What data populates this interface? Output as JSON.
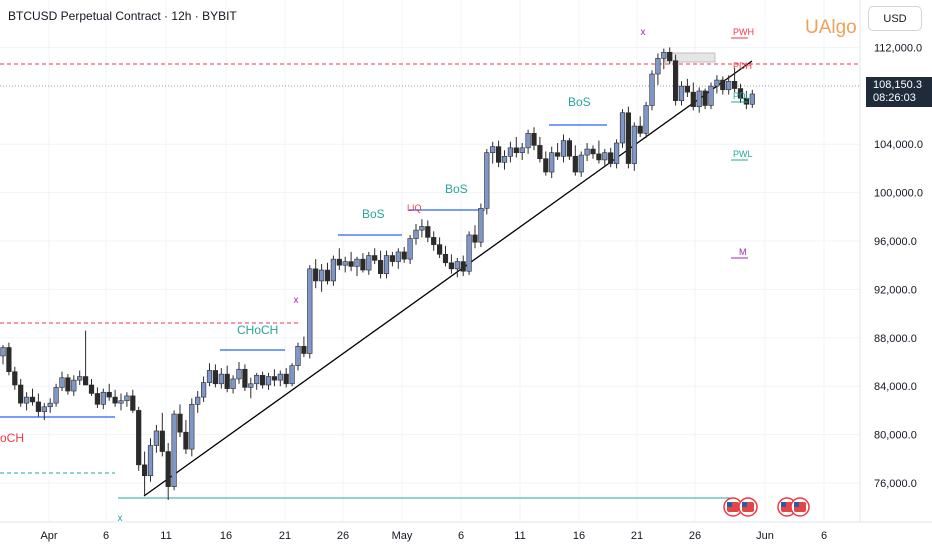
{
  "header": {
    "title": "BTCUSD Perpetual Contract · 12h · BYBIT",
    "brand": "UAlgo",
    "currency": "USD"
  },
  "price_label": {
    "price": "108,150.3",
    "countdown": "08:26:03"
  },
  "colors": {
    "bull_body": "#7f96c8",
    "bear_body": "#2b2b2b",
    "wick": "#2b2b2b",
    "bos": "#26a69a",
    "structure_line": "#2962ff",
    "red_dash": "#f23645",
    "green_dash": "#26a69a",
    "purple": "#9c27b0",
    "brand": "#f0a05a"
  },
  "chart_data": {
    "type": "candlestick",
    "title": "BTCUSD Perpetual Contract · 12h · BYBIT",
    "ylim": [
      72000,
      114000
    ],
    "y_ticks": [
      "112,000.0",
      "104,000.0",
      "100,000.0",
      "96,000.0",
      "92,000.0",
      "88,000.0",
      "84,000.0",
      "80,000.0",
      "76,000.0"
    ],
    "x_ticks": [
      "Apr",
      "6",
      "11",
      "16",
      "21",
      "26",
      "May",
      "6",
      "11",
      "16",
      "21",
      "26",
      "Jun",
      "6"
    ],
    "candles": [
      [
        86500,
        87400,
        85800,
        87200
      ],
      [
        87200,
        87600,
        84900,
        85200
      ],
      [
        85200,
        85600,
        83700,
        84100
      ],
      [
        84100,
        84600,
        82300,
        82600
      ],
      [
        82600,
        83500,
        82000,
        83100
      ],
      [
        83100,
        83800,
        82400,
        82700
      ],
      [
        82700,
        83400,
        81500,
        81900
      ],
      [
        81900,
        82600,
        81200,
        82300
      ],
      [
        82300,
        83000,
        81800,
        82600
      ],
      [
        82600,
        84200,
        82300,
        83900
      ],
      [
        83900,
        85200,
        83600,
        84700
      ],
      [
        84700,
        85000,
        83300,
        83600
      ],
      [
        83600,
        84900,
        83200,
        84500
      ],
      [
        84500,
        85300,
        84100,
        84800
      ],
      [
        84800,
        88600,
        84200,
        84100
      ],
      [
        84100,
        84600,
        83200,
        83400
      ],
      [
        83400,
        83900,
        82200,
        82500
      ],
      [
        82500,
        83800,
        82100,
        83500
      ],
      [
        83500,
        84200,
        82800,
        83100
      ],
      [
        83100,
        83700,
        82300,
        82600
      ],
      [
        82600,
        83400,
        82000,
        82800
      ],
      [
        82800,
        83500,
        82300,
        83200
      ],
      [
        83200,
        83700,
        81800,
        82000
      ],
      [
        82000,
        82300,
        77000,
        77500
      ],
      [
        77500,
        78600,
        75000,
        76600
      ],
      [
        76600,
        79700,
        76100,
        79100
      ],
      [
        79100,
        80800,
        78500,
        80300
      ],
      [
        80300,
        81800,
        78200,
        78600
      ],
      [
        78600,
        79300,
        74600,
        75700
      ],
      [
        75700,
        82000,
        75400,
        81700
      ],
      [
        81700,
        82500,
        79800,
        80200
      ],
      [
        80200,
        81200,
        78400,
        78800
      ],
      [
        78800,
        83000,
        78200,
        82500
      ],
      [
        82500,
        83600,
        81800,
        83100
      ],
      [
        83100,
        84800,
        82700,
        84300
      ],
      [
        84300,
        85900,
        84000,
        85300
      ],
      [
        85300,
        85800,
        83900,
        84200
      ],
      [
        84200,
        85500,
        83800,
        85000
      ],
      [
        85000,
        85700,
        83500,
        83800
      ],
      [
        83800,
        84900,
        83400,
        84600
      ],
      [
        84600,
        86000,
        84200,
        85400
      ],
      [
        85400,
        85800,
        83600,
        83900
      ],
      [
        83900,
        84700,
        83000,
        84200
      ],
      [
        84200,
        85100,
        83700,
        84900
      ],
      [
        84900,
        85200,
        83800,
        84100
      ],
      [
        84100,
        85100,
        83700,
        84800
      ],
      [
        84800,
        85400,
        84000,
        84500
      ],
      [
        84500,
        85300,
        84000,
        85000
      ],
      [
        85000,
        85500,
        83900,
        84200
      ],
      [
        84200,
        85900,
        84000,
        85700
      ],
      [
        85700,
        87600,
        85300,
        87300
      ],
      [
        87300,
        88100,
        86400,
        86700
      ],
      [
        86700,
        94000,
        86300,
        93700
      ],
      [
        93700,
        94500,
        92100,
        92700
      ],
      [
        92700,
        94100,
        91800,
        93600
      ],
      [
        93600,
        94200,
        92400,
        92700
      ],
      [
        92700,
        94800,
        92300,
        94500
      ],
      [
        94500,
        95400,
        93600,
        94000
      ],
      [
        94000,
        94700,
        93400,
        94300
      ],
      [
        94300,
        95100,
        93500,
        93900
      ],
      [
        93900,
        94700,
        93100,
        94500
      ],
      [
        94500,
        95000,
        93400,
        93600
      ],
      [
        93600,
        95100,
        93200,
        94800
      ],
      [
        94800,
        95400,
        94100,
        94400
      ],
      [
        94400,
        95200,
        92900,
        93300
      ],
      [
        93300,
        95200,
        92900,
        94800
      ],
      [
        94800,
        95100,
        93900,
        94300
      ],
      [
        94300,
        95400,
        93700,
        95100
      ],
      [
        95100,
        95500,
        94200,
        94500
      ],
      [
        94500,
        96500,
        94100,
        96200
      ],
      [
        96200,
        97400,
        95700,
        96900
      ],
      [
        96900,
        97800,
        96300,
        97200
      ],
      [
        97200,
        97700,
        95900,
        96300
      ],
      [
        96300,
        96800,
        95200,
        95700
      ],
      [
        95700,
        96300,
        94600,
        94900
      ],
      [
        94900,
        95600,
        93900,
        94200
      ],
      [
        94200,
        94900,
        93300,
        93700
      ],
      [
        93700,
        94600,
        93000,
        94300
      ],
      [
        94300,
        94800,
        93100,
        93500
      ],
      [
        93500,
        96800,
        93200,
        96500
      ],
      [
        96500,
        97300,
        95400,
        95900
      ],
      [
        95900,
        99100,
        95500,
        98700
      ],
      [
        98700,
        103600,
        98200,
        103300
      ],
      [
        103300,
        104200,
        102400,
        103800
      ],
      [
        103800,
        104300,
        102100,
        102500
      ],
      [
        102500,
        103500,
        101900,
        103000
      ],
      [
        103000,
        104200,
        102500,
        103700
      ],
      [
        103700,
        104600,
        102900,
        103300
      ],
      [
        103300,
        104100,
        102700,
        103700
      ],
      [
        103700,
        105200,
        103200,
        104900
      ],
      [
        104900,
        105400,
        103500,
        103900
      ],
      [
        103900,
        104600,
        102500,
        102800
      ],
      [
        102800,
        103400,
        101400,
        101700
      ],
      [
        101700,
        103800,
        101200,
        103300
      ],
      [
        103300,
        104100,
        102700,
        103000
      ],
      [
        103000,
        104800,
        102500,
        104300
      ],
      [
        104300,
        104500,
        102700,
        103000
      ],
      [
        103000,
        103900,
        101400,
        101700
      ],
      [
        101700,
        103400,
        101300,
        103100
      ],
      [
        103100,
        104100,
        102600,
        103600
      ],
      [
        103600,
        103900,
        102800,
        103200
      ],
      [
        103200,
        104300,
        102400,
        102700
      ],
      [
        102700,
        103600,
        102100,
        103300
      ],
      [
        103300,
        103700,
        102100,
        102400
      ],
      [
        102400,
        104400,
        102000,
        104100
      ],
      [
        104100,
        106900,
        103700,
        106600
      ],
      [
        106600,
        107100,
        102000,
        102400
      ],
      [
        102400,
        105800,
        101800,
        105500
      ],
      [
        105500,
        106300,
        104600,
        104900
      ],
      [
        104900,
        107500,
        104500,
        107200
      ],
      [
        107200,
        110100,
        106800,
        109800
      ],
      [
        109800,
        111500,
        108900,
        111100
      ],
      [
        111100,
        111900,
        110200,
        111600
      ],
      [
        111600,
        112000,
        110600,
        110900
      ],
      [
        110900,
        111400,
        107200,
        107600
      ],
      [
        107600,
        109200,
        107200,
        108800
      ],
      [
        108800,
        109400,
        107900,
        108300
      ],
      [
        108300,
        109100,
        106800,
        107100
      ],
      [
        107100,
        108700,
        106600,
        108400
      ],
      [
        108400,
        108600,
        106900,
        107200
      ],
      [
        107200,
        109100,
        106900,
        108800
      ],
      [
        108800,
        109700,
        108200,
        109300
      ],
      [
        109300,
        109600,
        108100,
        108500
      ],
      [
        108500,
        109700,
        108100,
        109200
      ],
      [
        109200,
        110300,
        108300,
        108600
      ],
      [
        108600,
        109000,
        107400,
        107800
      ],
      [
        107800,
        108400,
        106900,
        107300
      ],
      [
        107300,
        108500,
        107000,
        108150
      ]
    ]
  },
  "annotations": {
    "bos_1": "BoS",
    "bos_2": "BoS",
    "bos_3": "BoS",
    "choch": "CHoCH",
    "choch_left": "oCH",
    "liq": "LIQ",
    "pwh": "PWH",
    "pdh": "PDH",
    "pdl": "PDL",
    "pwl": "PWL",
    "m": "M",
    "x_marker": "x"
  }
}
